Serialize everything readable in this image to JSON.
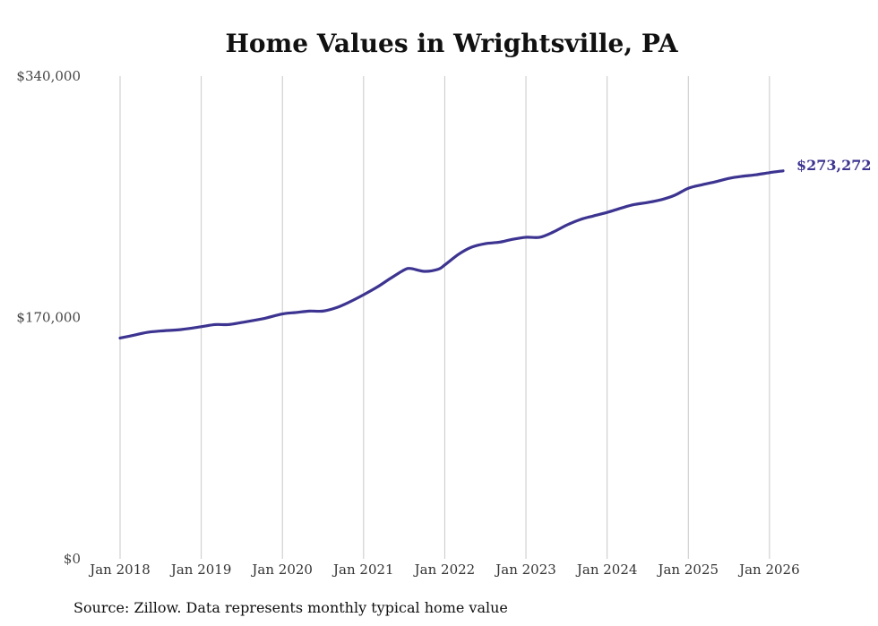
{
  "chart_data": {
    "type": "line",
    "title": "Home Values in Wrightsville, PA",
    "xlabel": "",
    "ylabel": "",
    "ylim": [
      0,
      340000
    ],
    "yticks": [
      {
        "value": 0,
        "label": "$0"
      },
      {
        "value": 170000,
        "label": "$170,000"
      },
      {
        "value": 340000,
        "label": "$340,000"
      }
    ],
    "xrange": [
      2018.0,
      2026.167
    ],
    "xticks": [
      {
        "value": 2018,
        "label": "Jan 2018"
      },
      {
        "value": 2019,
        "label": "Jan 2019"
      },
      {
        "value": 2020,
        "label": "Jan 2020"
      },
      {
        "value": 2021,
        "label": "Jan 2021"
      },
      {
        "value": 2022,
        "label": "Jan 2022"
      },
      {
        "value": 2023,
        "label": "Jan 2023"
      },
      {
        "value": 2024,
        "label": "Jan 2024"
      },
      {
        "value": 2025,
        "label": "Jan 2025"
      },
      {
        "value": 2026,
        "label": "Jan 2026"
      }
    ],
    "grid": "vertical",
    "series": [
      {
        "name": "Typical home value",
        "color": "#3c3490",
        "end_label": "$273,272",
        "x": [
          2018.0,
          2018.17,
          2018.33,
          2018.5,
          2018.75,
          2019.0,
          2019.17,
          2019.33,
          2019.5,
          2019.75,
          2020.0,
          2020.17,
          2020.33,
          2020.5,
          2020.67,
          2020.83,
          2021.0,
          2021.17,
          2021.33,
          2021.5,
          2021.58,
          2021.75,
          2021.92,
          2022.0,
          2022.17,
          2022.33,
          2022.5,
          2022.67,
          2022.83,
          2023.0,
          2023.17,
          2023.33,
          2023.5,
          2023.67,
          2023.83,
          2024.0,
          2024.17,
          2024.33,
          2024.5,
          2024.67,
          2024.83,
          2025.0,
          2025.17,
          2025.33,
          2025.5,
          2025.67,
          2025.83,
          2026.0,
          2026.167
        ],
        "values": [
          155500,
          157500,
          159500,
          160500,
          161500,
          163500,
          165000,
          165000,
          166500,
          169000,
          172500,
          173500,
          174500,
          174500,
          177000,
          181000,
          186000,
          191500,
          197500,
          203500,
          204500,
          202500,
          204000,
          207000,
          214500,
          219500,
          222000,
          223000,
          225000,
          226500,
          226500,
          230000,
          235000,
          239000,
          241500,
          244000,
          247000,
          249500,
          251000,
          253000,
          256000,
          261000,
          263500,
          265500,
          268000,
          269500,
          270500,
          272000,
          273272
        ]
      }
    ]
  },
  "source_note": "Source: Zillow. Data represents monthly typical home value"
}
